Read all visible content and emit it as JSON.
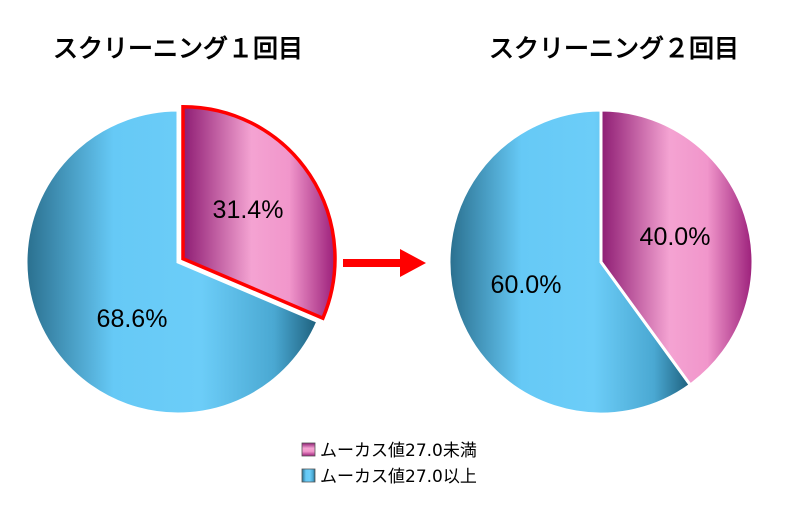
{
  "chart_data": [
    {
      "type": "pie",
      "title": "スクリーニング１回目",
      "series": [
        {
          "name": "ムーカス値27.0未満",
          "value": 31.4,
          "label": "31.4%"
        },
        {
          "name": "ムーカス値27.0以上",
          "value": 68.6,
          "label": "68.6%"
        }
      ]
    },
    {
      "type": "pie",
      "title": "スクリーニング２回目",
      "series": [
        {
          "name": "ムーカス値27.0未満",
          "value": 40.0,
          "label": "40.0%"
        },
        {
          "name": "ムーカス値27.0以上",
          "value": 60.0,
          "label": "60.0%"
        }
      ]
    }
  ],
  "legend": [
    {
      "label": "ムーカス値27.0未満",
      "color": "#e27ab5"
    },
    {
      "label": "ムーカス値27.0以上",
      "color": "#5bc0ec"
    }
  ],
  "colors": {
    "pink_dark": "#8e1c73",
    "pink_light": "#f49ed0",
    "blue_dark": "#1d5f7c",
    "blue_light": "#66c9f6",
    "highlight_border": "#ff0000",
    "arrow": "#ff0000"
  }
}
